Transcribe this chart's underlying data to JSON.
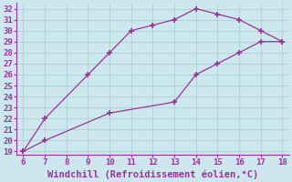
{
  "line1_x": [
    6,
    7,
    9,
    10,
    11,
    12,
    13,
    14,
    15,
    16,
    17,
    18
  ],
  "line1_y": [
    19,
    22,
    26,
    28,
    30,
    30.5,
    31,
    32,
    31.5,
    31,
    30,
    29
  ],
  "line2_x": [
    6,
    7,
    10,
    13,
    14,
    15,
    16,
    17,
    18
  ],
  "line2_y": [
    19,
    20,
    22.5,
    23.5,
    26,
    27,
    28,
    29,
    29
  ],
  "line_color": "#993399",
  "bg_color": "#cce8ee",
  "grid_color": "#aacccc",
  "xlabel": "Windchill (Refroidissement éolien,°C)",
  "xlim": [
    5.7,
    18.3
  ],
  "ylim": [
    18.7,
    32.5
  ],
  "xticks": [
    6,
    7,
    8,
    9,
    10,
    11,
    12,
    13,
    14,
    15,
    16,
    17,
    18
  ],
  "yticks": [
    19,
    20,
    21,
    22,
    23,
    24,
    25,
    26,
    27,
    28,
    29,
    30,
    31,
    32
  ],
  "tick_fontsize": 6.5,
  "xlabel_fontsize": 7.5,
  "marker": "+",
  "markersize": 5,
  "linewidth": 0.9,
  "markeredgewidth": 1.2
}
